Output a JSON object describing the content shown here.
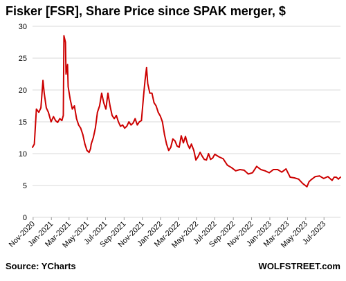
{
  "chart_data": {
    "type": "line",
    "title": "Fisker  [FSR], Share Price since SPAK merger, $",
    "xlabel": "",
    "ylabel": "",
    "ylim": [
      0,
      30
    ],
    "yticks": [
      0,
      5,
      10,
      15,
      20,
      25,
      30
    ],
    "xlim": [
      "2020-10-30",
      "2023-08-25"
    ],
    "xticks": [
      "Nov-2020",
      "Jan-2021",
      "Mar-2021",
      "May-2021",
      "Jul-2021",
      "Sep-2021",
      "Nov-2021",
      "Jan-2022",
      "Mar-2022",
      "May-2022",
      "Jul-2022",
      "Sep-2022",
      "Nov-2022",
      "Jan-2023",
      "Mar-2023",
      "May-2023",
      "Jul-2023"
    ],
    "grid": true,
    "legend": "none",
    "line_color": "#cc0000",
    "series": [
      {
        "x": [
          "2020-10-30",
          "2020-11-05",
          "2020-11-12",
          "2020-11-20",
          "2020-11-27",
          "2020-12-04",
          "2020-12-08",
          "2020-12-15",
          "2020-12-22",
          "2020-12-31",
          "2021-01-08",
          "2021-01-15",
          "2021-01-22",
          "2021-01-29",
          "2021-02-05",
          "2021-02-10",
          "2021-02-12",
          "2021-02-17",
          "2021-02-19",
          "2021-02-24",
          "2021-02-26",
          "2021-03-05",
          "2021-03-12",
          "2021-03-19",
          "2021-03-26",
          "2021-04-02",
          "2021-04-09",
          "2021-04-16",
          "2021-04-23",
          "2021-04-30",
          "2021-05-07",
          "2021-05-12",
          "2021-05-14",
          "2021-05-21",
          "2021-05-28",
          "2021-06-04",
          "2021-06-11",
          "2021-06-18",
          "2021-06-25",
          "2021-07-02",
          "2021-07-09",
          "2021-07-16",
          "2021-07-23",
          "2021-07-30",
          "2021-08-06",
          "2021-08-13",
          "2021-08-20",
          "2021-08-27",
          "2021-09-03",
          "2021-09-10",
          "2021-09-17",
          "2021-09-24",
          "2021-10-01",
          "2021-10-08",
          "2021-10-15",
          "2021-10-22",
          "2021-10-29",
          "2021-11-05",
          "2021-11-10",
          "2021-11-15",
          "2021-11-19",
          "2021-11-26",
          "2021-12-03",
          "2021-12-10",
          "2021-12-17",
          "2021-12-24",
          "2021-12-31",
          "2022-01-07",
          "2022-01-14",
          "2022-01-21",
          "2022-01-28",
          "2022-02-04",
          "2022-02-11",
          "2022-02-18",
          "2022-02-25",
          "2022-03-04",
          "2022-03-11",
          "2022-03-18",
          "2022-03-25",
          "2022-04-01",
          "2022-04-08",
          "2022-04-14",
          "2022-04-22",
          "2022-04-29",
          "2022-05-06",
          "2022-05-13",
          "2022-05-20",
          "2022-05-27",
          "2022-06-03",
          "2022-06-10",
          "2022-06-17",
          "2022-06-24",
          "2022-07-01",
          "2022-07-15",
          "2022-07-29",
          "2022-08-12",
          "2022-08-26",
          "2022-09-09",
          "2022-09-23",
          "2022-10-07",
          "2022-10-21",
          "2022-11-04",
          "2022-11-18",
          "2022-12-02",
          "2022-12-16",
          "2022-12-30",
          "2023-01-13",
          "2023-01-27",
          "2023-02-10",
          "2023-02-24",
          "2023-03-10",
          "2023-03-24",
          "2023-04-07",
          "2023-04-21",
          "2023-05-05",
          "2023-05-12",
          "2023-05-19",
          "2023-06-02",
          "2023-06-16",
          "2023-06-30",
          "2023-07-14",
          "2023-07-28",
          "2023-08-04",
          "2023-08-11",
          "2023-08-18",
          "2023-08-25"
        ],
        "y": [
          11.0,
          11.5,
          17.0,
          16.5,
          17.2,
          21.5,
          19.5,
          17.2,
          16.5,
          15.0,
          15.8,
          15.2,
          14.9,
          15.5,
          15.2,
          16.0,
          28.5,
          27.5,
          22.5,
          24.0,
          20.5,
          18.5,
          17.0,
          17.5,
          15.5,
          14.5,
          14.0,
          13.0,
          11.5,
          10.5,
          10.2,
          10.8,
          11.5,
          12.5,
          14.0,
          16.5,
          17.5,
          19.5,
          18.0,
          17.0,
          19.5,
          17.5,
          16.0,
          15.5,
          16.0,
          15.0,
          14.3,
          14.5,
          14.0,
          14.3,
          15.0,
          14.5,
          14.8,
          15.5,
          14.5,
          15.0,
          15.2,
          19.0,
          21.5,
          23.5,
          21.0,
          19.5,
          19.5,
          18.0,
          17.5,
          16.5,
          15.9,
          15.0,
          13.0,
          11.5,
          10.5,
          11.0,
          12.3,
          12.0,
          11.2,
          11.0,
          12.8,
          11.7,
          12.7,
          11.5,
          10.8,
          11.5,
          10.5,
          9.0,
          9.5,
          10.2,
          9.6,
          9.1,
          9.0,
          10.0,
          9.1,
          9.3,
          9.9,
          9.5,
          9.2,
          8.2,
          7.8,
          7.3,
          7.5,
          7.4,
          6.8,
          7.0,
          8.0,
          7.5,
          7.3,
          7.0,
          7.5,
          7.5,
          7.1,
          7.6,
          6.3,
          6.2,
          6.0,
          5.3,
          4.8,
          5.6,
          5.9,
          6.4,
          6.5,
          6.1,
          6.4,
          5.8,
          6.3,
          6.3,
          6.0,
          6.3
        ]
      }
    ]
  },
  "footer": {
    "source": "Source: YCharts",
    "brand": "WOLFSTREET.com"
  }
}
